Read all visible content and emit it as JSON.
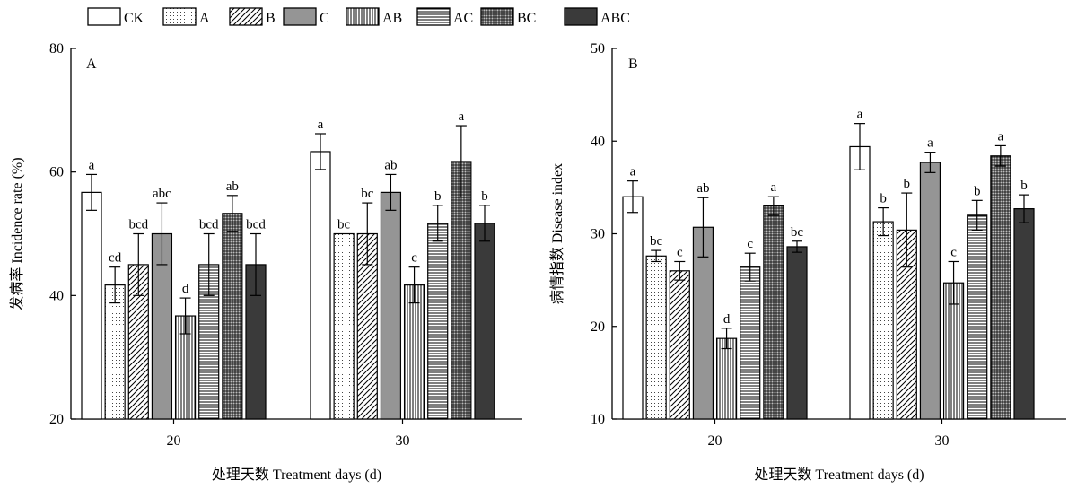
{
  "legend": {
    "items": [
      {
        "label": "CK",
        "pattern": "white"
      },
      {
        "label": "A",
        "pattern": "dots"
      },
      {
        "label": "B",
        "pattern": "diag"
      },
      {
        "label": "C",
        "pattern": "gray"
      },
      {
        "label": "AB",
        "pattern": "vlines"
      },
      {
        "label": "AC",
        "pattern": "hlines"
      },
      {
        "label": "BC",
        "pattern": "grid"
      },
      {
        "label": "ABC",
        "pattern": "dark"
      }
    ]
  },
  "colors": {
    "gray": "#959595",
    "dark": "#3a3a3a",
    "grid_bg": "#bdbdbd"
  },
  "chart_data": [
    {
      "type": "bar",
      "panel": "A",
      "ylabel": "发病率 Incidence rate (%)",
      "xlabel": "处理天数 Treatment days (d)",
      "categories": [
        "20",
        "30"
      ],
      "ylim": [
        20,
        80
      ],
      "yticks": [
        20,
        40,
        60,
        80
      ],
      "series": [
        {
          "name": "CK",
          "values": [
            56.7,
            63.3
          ],
          "errors": [
            2.9,
            2.9
          ],
          "letters": [
            "a",
            "a"
          ]
        },
        {
          "name": "A",
          "values": [
            41.7,
            50.0
          ],
          "errors": [
            2.9,
            0
          ],
          "letters": [
            "cd",
            "bc"
          ]
        },
        {
          "name": "B",
          "values": [
            45.0,
            50.0
          ],
          "errors": [
            5.0,
            5.0
          ],
          "letters": [
            "bcd",
            "bc"
          ]
        },
        {
          "name": "C",
          "values": [
            50.0,
            56.7
          ],
          "errors": [
            5.0,
            2.9
          ],
          "letters": [
            "abc",
            "ab"
          ]
        },
        {
          "name": "AB",
          "values": [
            36.7,
            41.7
          ],
          "errors": [
            2.9,
            2.9
          ],
          "letters": [
            "d",
            "c"
          ]
        },
        {
          "name": "AC",
          "values": [
            45.0,
            51.7
          ],
          "errors": [
            5.0,
            2.9
          ],
          "letters": [
            "bcd",
            "b"
          ]
        },
        {
          "name": "BC",
          "values": [
            53.3,
            61.7
          ],
          "errors": [
            2.9,
            5.8
          ],
          "letters": [
            "ab",
            "a"
          ]
        },
        {
          "name": "ABC",
          "values": [
            45.0,
            51.7
          ],
          "errors": [
            5.0,
            2.9
          ],
          "letters": [
            "bcd",
            "b"
          ]
        }
      ]
    },
    {
      "type": "bar",
      "panel": "B",
      "ylabel": "病情指数 Disease index",
      "xlabel": "处理天数 Treatment days (d)",
      "categories": [
        "20",
        "30"
      ],
      "ylim": [
        10,
        50
      ],
      "yticks": [
        10,
        20,
        30,
        40,
        50
      ],
      "series": [
        {
          "name": "CK",
          "values": [
            34.0,
            39.4
          ],
          "errors": [
            1.7,
            2.5
          ],
          "letters": [
            "a",
            "a"
          ]
        },
        {
          "name": "A",
          "values": [
            27.6,
            31.3
          ],
          "errors": [
            0.6,
            1.5
          ],
          "letters": [
            "bc",
            "b"
          ]
        },
        {
          "name": "B",
          "values": [
            26.0,
            30.4
          ],
          "errors": [
            1.0,
            4.0
          ],
          "letters": [
            "c",
            "b"
          ]
        },
        {
          "name": "C",
          "values": [
            30.7,
            37.7
          ],
          "errors": [
            3.2,
            1.1
          ],
          "letters": [
            "ab",
            "a"
          ]
        },
        {
          "name": "AB",
          "values": [
            18.7,
            24.7
          ],
          "errors": [
            1.1,
            2.3
          ],
          "letters": [
            "d",
            "c"
          ]
        },
        {
          "name": "AC",
          "values": [
            26.4,
            32.0
          ],
          "errors": [
            1.5,
            1.6
          ],
          "letters": [
            "c",
            "b"
          ]
        },
        {
          "name": "BC",
          "values": [
            33.0,
            38.4
          ],
          "errors": [
            1.0,
            1.1
          ],
          "letters": [
            "a",
            "a"
          ]
        },
        {
          "name": "ABC",
          "values": [
            28.6,
            32.7
          ],
          "errors": [
            0.6,
            1.5
          ],
          "letters": [
            "bc",
            "b"
          ]
        }
      ]
    }
  ]
}
